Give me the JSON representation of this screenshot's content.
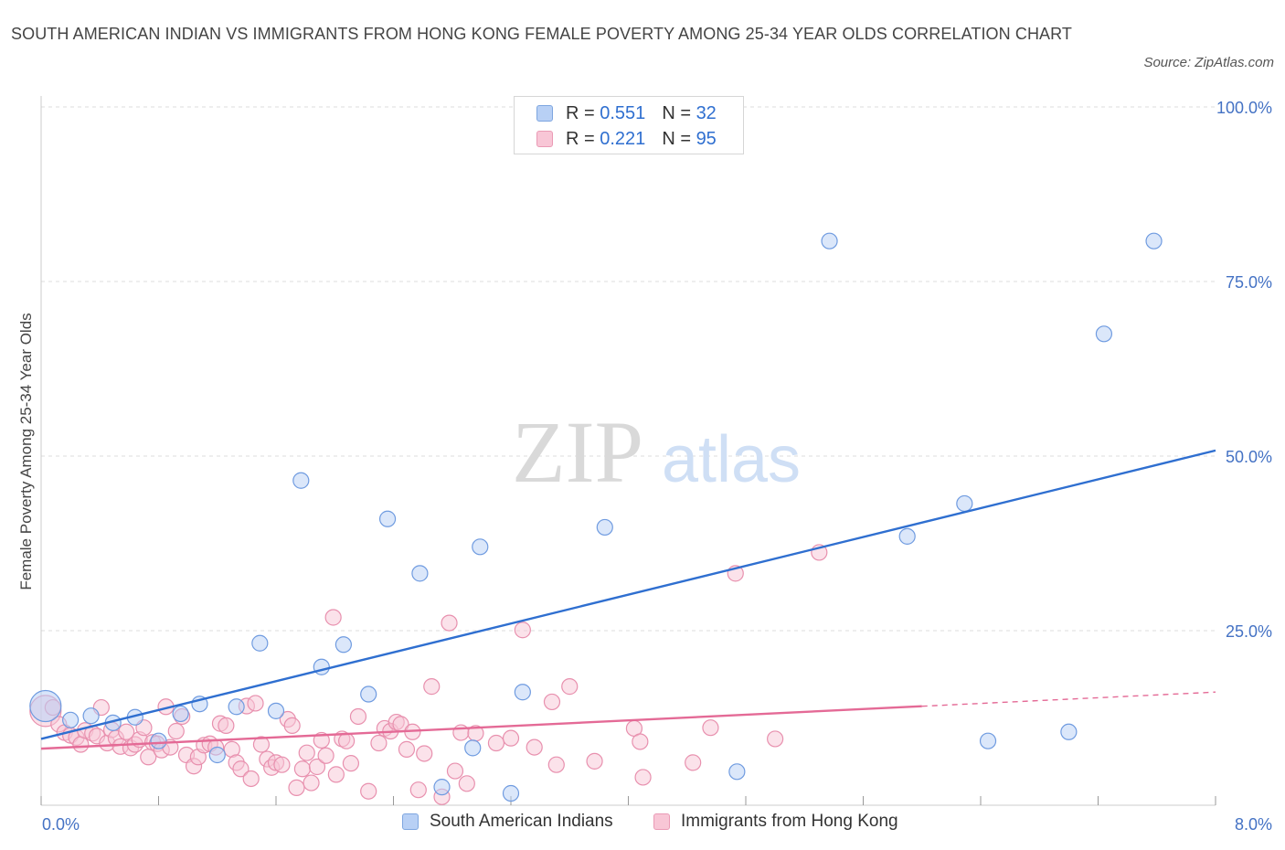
{
  "title": "SOUTH AMERICAN INDIAN VS IMMIGRANTS FROM HONG KONG FEMALE POVERTY AMONG 25-34 YEAR OLDS CORRELATION CHART",
  "source": "Source: ZipAtlas.com",
  "watermark": {
    "zip": "ZIP",
    "atlas": "atlas"
  },
  "legend": {
    "r_label": "R =",
    "n_label": "N =",
    "series1": {
      "r": "0.551",
      "n": "32"
    },
    "series2": {
      "r": "0.221",
      "n": "95"
    }
  },
  "colors": {
    "blue_fill": "#b8d0f5",
    "blue_stroke": "#6f9be0",
    "blue_line": "#2f6fd0",
    "pink_fill": "#f8c6d6",
    "pink_stroke": "#e890ae",
    "pink_line": "#e46a96",
    "grid": "#dddddd",
    "axis_text": "#4472c4"
  },
  "chart_data": {
    "type": "scatter",
    "title": "SOUTH AMERICAN INDIAN VS IMMIGRANTS FROM HONG KONG FEMALE POVERTY AMONG 25-34 YEAR OLDS CORRELATION CHART",
    "xlabel": "",
    "ylabel": "Female Poverty Among 25-34 Year Olds",
    "xlim": [
      0,
      8
    ],
    "ylim": [
      0,
      100
    ],
    "x_tick_labels": [
      "0.0%",
      "8.0%"
    ],
    "y_ticks": [
      25,
      50,
      75,
      100
    ],
    "y_tick_labels": [
      "25.0%",
      "50.0%",
      "75.0%",
      "100.0%"
    ],
    "legend_position": "bottom",
    "series": [
      {
        "name": "South American Indians",
        "r": 0.551,
        "n": 32,
        "trend": {
          "x": [
            0,
            8
          ],
          "y": [
            9.5,
            50.8
          ],
          "dashed_from": null
        },
        "points": [
          {
            "x": 0.03,
            "y": 14.2,
            "big": true
          },
          {
            "x": 0.2,
            "y": 12.2
          },
          {
            "x": 0.34,
            "y": 12.8
          },
          {
            "x": 0.49,
            "y": 11.8
          },
          {
            "x": 0.64,
            "y": 12.6
          },
          {
            "x": 0.8,
            "y": 9.2
          },
          {
            "x": 0.95,
            "y": 13.1
          },
          {
            "x": 1.08,
            "y": 14.5
          },
          {
            "x": 1.2,
            "y": 7.2
          },
          {
            "x": 1.33,
            "y": 14.1
          },
          {
            "x": 1.49,
            "y": 23.2
          },
          {
            "x": 1.6,
            "y": 13.5
          },
          {
            "x": 1.77,
            "y": 46.5
          },
          {
            "x": 1.91,
            "y": 19.8
          },
          {
            "x": 2.06,
            "y": 23.0
          },
          {
            "x": 2.23,
            "y": 15.9
          },
          {
            "x": 2.36,
            "y": 41.0
          },
          {
            "x": 2.58,
            "y": 33.2
          },
          {
            "x": 2.73,
            "y": 2.6
          },
          {
            "x": 2.94,
            "y": 8.2
          },
          {
            "x": 2.99,
            "y": 37.0
          },
          {
            "x": 3.2,
            "y": 1.7
          },
          {
            "x": 3.28,
            "y": 16.2
          },
          {
            "x": 3.84,
            "y": 39.8
          },
          {
            "x": 4.74,
            "y": 4.8
          },
          {
            "x": 5.37,
            "y": 80.8
          },
          {
            "x": 5.9,
            "y": 38.5
          },
          {
            "x": 6.29,
            "y": 43.2
          },
          {
            "x": 6.45,
            "y": 9.2
          },
          {
            "x": 7.0,
            "y": 10.5
          },
          {
            "x": 7.24,
            "y": 67.5
          },
          {
            "x": 7.58,
            "y": 80.8
          }
        ]
      },
      {
        "name": "Immigrants from Hong Kong",
        "r": 0.221,
        "n": 95,
        "trend": {
          "x": [
            0,
            8
          ],
          "y": [
            8.1,
            16.2
          ],
          "dashed_from": 6.0
        },
        "points": [
          {
            "x": 0.03,
            "y": 13.5,
            "big": true
          },
          {
            "x": 0.08,
            "y": 14.0
          },
          {
            "x": 0.12,
            "y": 11.6
          },
          {
            "x": 0.16,
            "y": 10.4
          },
          {
            "x": 0.2,
            "y": 10.0
          },
          {
            "x": 0.24,
            "y": 9.7
          },
          {
            "x": 0.27,
            "y": 8.7
          },
          {
            "x": 0.3,
            "y": 10.7
          },
          {
            "x": 0.35,
            "y": 10.3
          },
          {
            "x": 0.38,
            "y": 9.9
          },
          {
            "x": 0.41,
            "y": 14.0
          },
          {
            "x": 0.45,
            "y": 8.9
          },
          {
            "x": 0.48,
            "y": 10.8
          },
          {
            "x": 0.51,
            "y": 9.6
          },
          {
            "x": 0.54,
            "y": 8.4
          },
          {
            "x": 0.58,
            "y": 10.5
          },
          {
            "x": 0.61,
            "y": 8.2
          },
          {
            "x": 0.64,
            "y": 8.7
          },
          {
            "x": 0.67,
            "y": 9.4
          },
          {
            "x": 0.7,
            "y": 11.1
          },
          {
            "x": 0.73,
            "y": 6.9
          },
          {
            "x": 0.76,
            "y": 9.0
          },
          {
            "x": 0.79,
            "y": 8.8
          },
          {
            "x": 0.82,
            "y": 7.9
          },
          {
            "x": 0.85,
            "y": 14.1
          },
          {
            "x": 0.88,
            "y": 8.3
          },
          {
            "x": 0.92,
            "y": 10.6
          },
          {
            "x": 0.96,
            "y": 12.7
          },
          {
            "x": 0.99,
            "y": 7.2
          },
          {
            "x": 1.04,
            "y": 5.6
          },
          {
            "x": 1.07,
            "y": 6.9
          },
          {
            "x": 1.11,
            "y": 8.6
          },
          {
            "x": 1.15,
            "y": 8.8
          },
          {
            "x": 1.19,
            "y": 8.3
          },
          {
            "x": 1.22,
            "y": 11.7
          },
          {
            "x": 1.26,
            "y": 11.4
          },
          {
            "x": 1.3,
            "y": 8.0
          },
          {
            "x": 1.33,
            "y": 6.1
          },
          {
            "x": 1.36,
            "y": 5.2
          },
          {
            "x": 1.4,
            "y": 14.2
          },
          {
            "x": 1.43,
            "y": 3.8
          },
          {
            "x": 1.46,
            "y": 14.6
          },
          {
            "x": 1.5,
            "y": 8.7
          },
          {
            "x": 1.54,
            "y": 6.6
          },
          {
            "x": 1.57,
            "y": 5.4
          },
          {
            "x": 1.6,
            "y": 6.1
          },
          {
            "x": 1.64,
            "y": 5.8
          },
          {
            "x": 1.68,
            "y": 12.3
          },
          {
            "x": 1.71,
            "y": 11.4
          },
          {
            "x": 1.74,
            "y": 2.5
          },
          {
            "x": 1.78,
            "y": 5.2
          },
          {
            "x": 1.81,
            "y": 7.5
          },
          {
            "x": 1.84,
            "y": 3.2
          },
          {
            "x": 1.88,
            "y": 5.5
          },
          {
            "x": 1.91,
            "y": 9.3
          },
          {
            "x": 1.94,
            "y": 7.1
          },
          {
            "x": 1.99,
            "y": 26.9
          },
          {
            "x": 2.01,
            "y": 4.4
          },
          {
            "x": 2.05,
            "y": 9.5
          },
          {
            "x": 2.08,
            "y": 9.2
          },
          {
            "x": 2.11,
            "y": 6.0
          },
          {
            "x": 2.16,
            "y": 12.7
          },
          {
            "x": 2.23,
            "y": 2.0
          },
          {
            "x": 2.3,
            "y": 8.9
          },
          {
            "x": 2.34,
            "y": 11.0
          },
          {
            "x": 2.38,
            "y": 10.6
          },
          {
            "x": 2.42,
            "y": 11.9
          },
          {
            "x": 2.45,
            "y": 11.6
          },
          {
            "x": 2.49,
            "y": 8.0
          },
          {
            "x": 2.53,
            "y": 10.5
          },
          {
            "x": 2.57,
            "y": 2.2
          },
          {
            "x": 2.61,
            "y": 7.4
          },
          {
            "x": 2.66,
            "y": 17.0
          },
          {
            "x": 2.73,
            "y": 1.2
          },
          {
            "x": 2.78,
            "y": 26.1
          },
          {
            "x": 2.82,
            "y": 4.9
          },
          {
            "x": 2.86,
            "y": 10.4
          },
          {
            "x": 2.9,
            "y": 3.1
          },
          {
            "x": 2.96,
            "y": 10.3
          },
          {
            "x": 3.1,
            "y": 8.9
          },
          {
            "x": 3.2,
            "y": 9.6
          },
          {
            "x": 3.28,
            "y": 25.1
          },
          {
            "x": 3.36,
            "y": 8.3
          },
          {
            "x": 3.48,
            "y": 14.8
          },
          {
            "x": 3.51,
            "y": 5.8
          },
          {
            "x": 3.6,
            "y": 17.0
          },
          {
            "x": 3.77,
            "y": 6.3
          },
          {
            "x": 4.04,
            "y": 11.0
          },
          {
            "x": 4.08,
            "y": 9.1
          },
          {
            "x": 4.1,
            "y": 4.0
          },
          {
            "x": 4.44,
            "y": 6.1
          },
          {
            "x": 4.56,
            "y": 11.1
          },
          {
            "x": 4.73,
            "y": 33.2
          },
          {
            "x": 5.0,
            "y": 9.5
          },
          {
            "x": 5.3,
            "y": 36.2
          }
        ]
      }
    ]
  }
}
